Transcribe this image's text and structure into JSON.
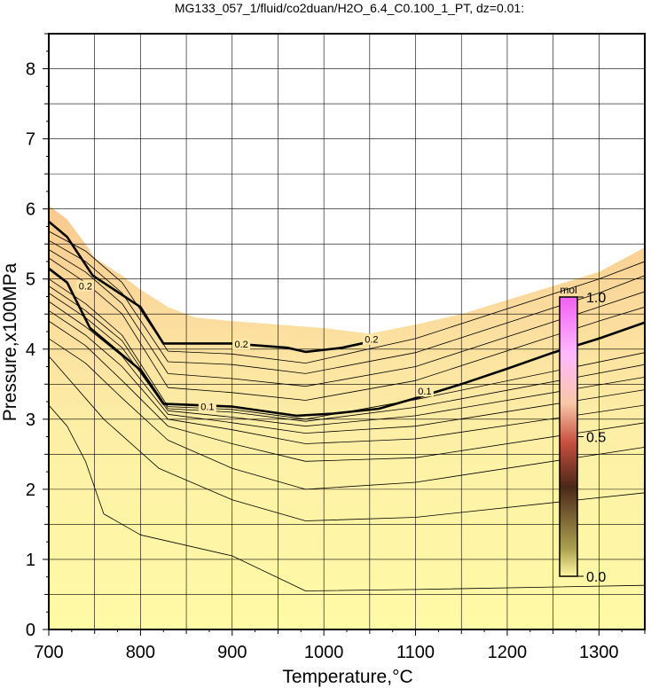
{
  "chart_data": {
    "type": "contour",
    "title": "MG133_057_1/fluid/co2duan/H2O_6.4_C0.100_1_PT, dz=0.01:",
    "xlabel": "Temperature,°C",
    "ylabel": "Pressure,x100MPa",
    "xlim": [
      700,
      1350
    ],
    "ylim": [
      0,
      8.5
    ],
    "xticks": [
      700,
      800,
      900,
      1000,
      1100,
      1200,
      1300
    ],
    "yticks": [
      0,
      1,
      2,
      3,
      4,
      5,
      6,
      7,
      8
    ],
    "grid": true,
    "colorbar": {
      "label": "mol",
      "ticks": [
        "0.0",
        "0.5",
        "1.0"
      ],
      "range": [
        0,
        1
      ]
    },
    "contour_labels": [
      {
        "text": "0.2",
        "x": 910,
        "y": 4.07
      },
      {
        "text": "0.2",
        "x": 740,
        "y": 4.9
      },
      {
        "text": "0.1",
        "x": 873,
        "y": 3.18
      },
      {
        "text": "0.1",
        "x": 1110,
        "y": 3.4
      },
      {
        "text": "0.2",
        "x": 1052,
        "y": 4.14
      }
    ],
    "upper_boundary": [
      [
        700,
        6.05
      ],
      [
        720,
        5.85
      ],
      [
        740,
        5.5
      ],
      [
        750,
        5.3
      ],
      [
        780,
        5.05
      ],
      [
        800,
        4.85
      ],
      [
        830,
        4.6
      ],
      [
        860,
        4.45
      ],
      [
        900,
        4.4
      ],
      [
        950,
        4.35
      ],
      [
        1000,
        4.3
      ],
      [
        1050,
        4.22
      ],
      [
        1100,
        4.35
      ],
      [
        1150,
        4.5
      ],
      [
        1200,
        4.7
      ],
      [
        1250,
        4.9
      ],
      [
        1300,
        5.1
      ],
      [
        1350,
        5.45
      ]
    ],
    "contours": [
      {
        "level": 0.01,
        "points": [
          [
            700,
            3.2
          ],
          [
            720,
            2.9
          ],
          [
            740,
            2.4
          ],
          [
            760,
            1.65
          ],
          [
            800,
            1.35
          ],
          [
            900,
            1.05
          ],
          [
            980,
            0.55
          ],
          [
            1100,
            0.57
          ],
          [
            1350,
            0.63
          ]
        ]
      },
      {
        "level": 0.02,
        "points": [
          [
            700,
            3.9
          ],
          [
            760,
            3.0
          ],
          [
            820,
            2.3
          ],
          [
            900,
            1.85
          ],
          [
            980,
            1.55
          ],
          [
            1100,
            1.6
          ],
          [
            1350,
            1.95
          ]
        ]
      },
      {
        "level": 0.03,
        "points": [
          [
            700,
            4.15
          ],
          [
            740,
            3.8
          ],
          [
            780,
            3.3
          ],
          [
            830,
            2.7
          ],
          [
            900,
            2.3
          ],
          [
            980,
            2.0
          ],
          [
            1100,
            2.1
          ],
          [
            1350,
            2.6
          ]
        ]
      },
      {
        "level": 0.04,
        "points": [
          [
            700,
            4.4
          ],
          [
            740,
            4.05
          ],
          [
            780,
            3.55
          ],
          [
            830,
            2.9
          ],
          [
            900,
            2.65
          ],
          [
            980,
            2.4
          ],
          [
            1100,
            2.45
          ],
          [
            1350,
            2.95
          ]
        ]
      },
      {
        "level": 0.05,
        "points": [
          [
            700,
            4.55
          ],
          [
            740,
            4.2
          ],
          [
            780,
            3.75
          ],
          [
            830,
            3.0
          ],
          [
            900,
            2.85
          ],
          [
            980,
            2.65
          ],
          [
            1100,
            2.72
          ],
          [
            1350,
            3.2
          ]
        ]
      },
      {
        "level": 0.06,
        "points": [
          [
            700,
            4.68
          ],
          [
            740,
            4.32
          ],
          [
            780,
            3.9
          ],
          [
            830,
            3.07
          ],
          [
            900,
            2.95
          ],
          [
            980,
            2.8
          ],
          [
            1100,
            2.9
          ],
          [
            1350,
            3.42
          ]
        ]
      },
      {
        "level": 0.07,
        "points": [
          [
            700,
            4.8
          ],
          [
            740,
            4.45
          ],
          [
            780,
            4.02
          ],
          [
            830,
            3.12
          ],
          [
            900,
            3.03
          ],
          [
            980,
            2.9
          ],
          [
            1100,
            3.05
          ],
          [
            1350,
            3.6
          ]
        ]
      },
      {
        "level": 0.08,
        "points": [
          [
            700,
            4.9
          ],
          [
            740,
            4.55
          ],
          [
            780,
            4.12
          ],
          [
            830,
            3.15
          ],
          [
            900,
            3.1
          ],
          [
            980,
            2.97
          ],
          [
            1100,
            3.17
          ],
          [
            1350,
            3.78
          ]
        ]
      },
      {
        "level": 0.09,
        "points": [
          [
            700,
            5.0
          ],
          [
            740,
            4.65
          ],
          [
            780,
            4.2
          ],
          [
            830,
            3.18
          ],
          [
            900,
            3.14
          ],
          [
            980,
            3.0
          ],
          [
            1100,
            3.28
          ],
          [
            1350,
            3.95
          ]
        ]
      },
      {
        "level": 0.1,
        "points": [
          [
            700,
            5.15
          ],
          [
            720,
            4.95
          ],
          [
            745,
            4.3
          ],
          [
            800,
            3.7
          ],
          [
            825,
            3.22
          ],
          [
            900,
            3.18
          ],
          [
            970,
            3.05
          ],
          [
            1010,
            3.08
          ],
          [
            1060,
            3.15
          ],
          [
            1100,
            3.3
          ],
          [
            1150,
            3.5
          ],
          [
            1200,
            3.72
          ],
          [
            1250,
            3.95
          ],
          [
            1300,
            4.15
          ],
          [
            1350,
            4.38
          ]
        ]
      },
      {
        "level": 0.12,
        "points": [
          [
            700,
            5.3
          ],
          [
            740,
            4.95
          ],
          [
            780,
            4.5
          ],
          [
            830,
            3.45
          ],
          [
            900,
            3.38
          ],
          [
            980,
            3.27
          ],
          [
            1100,
            3.55
          ],
          [
            1300,
            4.4
          ],
          [
            1350,
            4.6
          ]
        ]
      },
      {
        "level": 0.14,
        "points": [
          [
            700,
            5.42
          ],
          [
            740,
            5.1
          ],
          [
            780,
            4.65
          ],
          [
            830,
            3.65
          ],
          [
            900,
            3.58
          ],
          [
            980,
            3.47
          ],
          [
            1100,
            3.75
          ],
          [
            1300,
            4.6
          ],
          [
            1350,
            4.82
          ]
        ]
      },
      {
        "level": 0.16,
        "points": [
          [
            700,
            5.55
          ],
          [
            740,
            5.25
          ],
          [
            780,
            4.8
          ],
          [
            830,
            3.82
          ],
          [
            900,
            3.78
          ],
          [
            980,
            3.65
          ],
          [
            1100,
            3.95
          ],
          [
            1300,
            4.8
          ],
          [
            1350,
            5.05
          ]
        ]
      },
      {
        "level": 0.18,
        "points": [
          [
            700,
            5.68
          ],
          [
            740,
            5.4
          ],
          [
            780,
            4.95
          ],
          [
            830,
            3.97
          ],
          [
            900,
            3.93
          ],
          [
            980,
            3.8
          ],
          [
            1100,
            4.15
          ],
          [
            1300,
            5.0
          ],
          [
            1350,
            5.25
          ]
        ]
      },
      {
        "level": 0.2,
        "points": [
          [
            700,
            5.82
          ],
          [
            720,
            5.6
          ],
          [
            748,
            5.05
          ],
          [
            800,
            4.6
          ],
          [
            825,
            4.08
          ],
          [
            900,
            4.08
          ],
          [
            960,
            4.02
          ],
          [
            980,
            3.96
          ],
          [
            1020,
            4.02
          ],
          [
            1055,
            4.12
          ]
        ]
      }
    ]
  }
}
